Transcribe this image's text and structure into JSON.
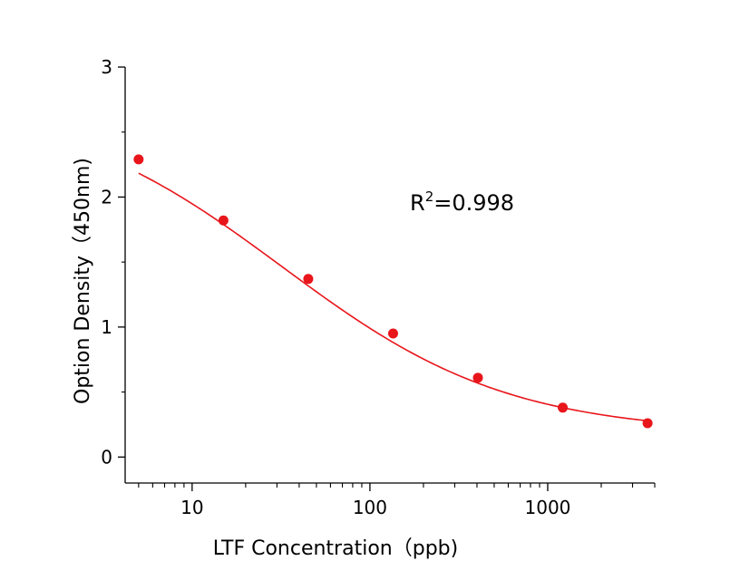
{
  "chart_data": {
    "type": "scatter",
    "xlabel": "LTF Concentration（ppb)",
    "ylabel": "Option Density（450nm)",
    "x_scale": "log",
    "xlim": [
      4.2,
      4000
    ],
    "ylim": [
      -0.2,
      3.0
    ],
    "x_ticks": [
      {
        "value": 10,
        "label": "10"
      },
      {
        "value": 100,
        "label": "100"
      },
      {
        "value": 1000,
        "label": "1000"
      }
    ],
    "y_ticks": [
      {
        "value": 0,
        "label": "0"
      },
      {
        "value": 1,
        "label": "1"
      },
      {
        "value": 2,
        "label": "2"
      },
      {
        "value": 3,
        "label": "3"
      }
    ],
    "annotation": {
      "base": "R",
      "sup": "2",
      "rest": "=0.998"
    },
    "grid": false,
    "series": [
      {
        "kind": "points",
        "color": "#e8151b",
        "x": [
          5,
          15,
          45,
          135,
          405,
          1215,
          3645
        ],
        "y": [
          2.29,
          1.82,
          1.37,
          0.95,
          0.61,
          0.38,
          0.26
        ]
      },
      {
        "kind": "fit",
        "color": "#e8151b",
        "model": "4PL",
        "params": {
          "A": 2.75,
          "B": 0.68,
          "C": 32,
          "D": 0.18
        },
        "x_range": [
          5,
          3645
        ]
      }
    ]
  }
}
